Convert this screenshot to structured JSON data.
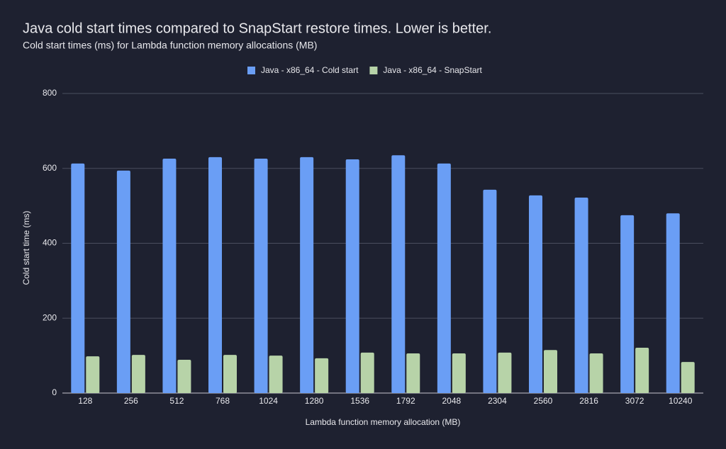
{
  "chart_data": {
    "type": "bar",
    "title": "Java cold start times compared to SnapStart restore times. Lower is better.",
    "subtitle": "Cold start times (ms) for Lambda function memory allocations (MB)",
    "x_label": "Lambda function memory allocation (MB)",
    "y_label": "Cold start time (ms)",
    "categories": [
      "128",
      "256",
      "512",
      "768",
      "1024",
      "1280",
      "1536",
      "1792",
      "2048",
      "2304",
      "2560",
      "2816",
      "3072",
      "10240"
    ],
    "series": [
      {
        "name": "Java - x86_64 - Cold start",
        "color": "#6a9ef5",
        "values": [
          613,
          594,
          626,
          630,
          626,
          630,
          624,
          635,
          613,
          543,
          528,
          522,
          475,
          480
        ]
      },
      {
        "name": "Java - x86_64 - SnapStart",
        "color": "#b7d3a8",
        "values": [
          98,
          102,
          89,
          102,
          100,
          93,
          108,
          106,
          106,
          108,
          115,
          106,
          121,
          83
        ]
      }
    ],
    "ylim": [
      0,
      800
    ],
    "yticks": [
      0,
      200,
      400,
      600,
      800
    ],
    "grid": true,
    "legend": "top"
  }
}
